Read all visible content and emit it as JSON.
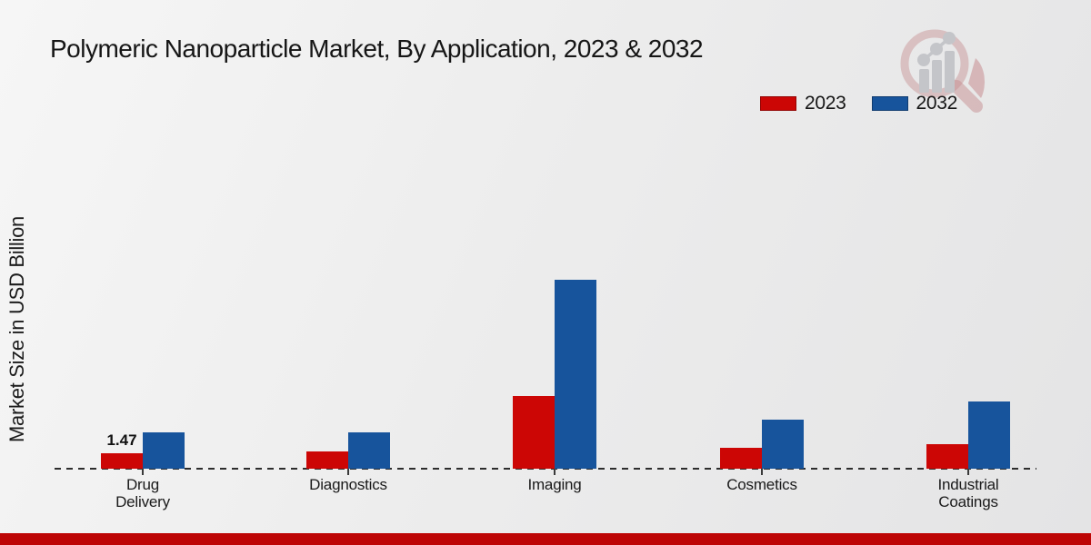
{
  "title": "Polymeric Nanoparticle Market, By Application, 2023 & 2032",
  "y_axis_label": "Market Size in USD Billion",
  "chart_data": {
    "type": "bar",
    "title": "Polymeric Nanoparticle Market, By Application, 2023 & 2032",
    "categories": [
      "Drug Delivery",
      "Diagnostics",
      "Imaging",
      "Cosmetics",
      "Industrial Coatings"
    ],
    "category_label_lines": [
      [
        "Drug",
        "Delivery"
      ],
      [
        "Diagnostics"
      ],
      [
        "Imaging"
      ],
      [
        "Cosmetics"
      ],
      [
        "Industrial",
        "Coatings"
      ]
    ],
    "series": [
      {
        "name": "2023",
        "color": "#cc0605",
        "values": [
          1.47,
          1.6,
          6.7,
          1.95,
          2.3
        ]
      },
      {
        "name": "2032",
        "color": "#17549c",
        "values": [
          3.35,
          3.4,
          17.5,
          4.5,
          6.2
        ]
      }
    ],
    "data_labels": [
      {
        "series": "2023",
        "category": "Drug Delivery",
        "text": "1.47"
      }
    ],
    "ylabel": "Market Size in USD Billion",
    "xlabel": "",
    "ylim": [
      0,
      20
    ],
    "grid": false,
    "baseline_style": "dashed",
    "legend_position": "top-right"
  },
  "legend": {
    "items": [
      {
        "label": "2023",
        "color": "#cc0605"
      },
      {
        "label": "2032",
        "color": "#17549c"
      }
    ]
  },
  "watermark": {
    "name": "market-research-magnifier-logo"
  },
  "footer": {
    "bar_color": "#bd0505"
  }
}
